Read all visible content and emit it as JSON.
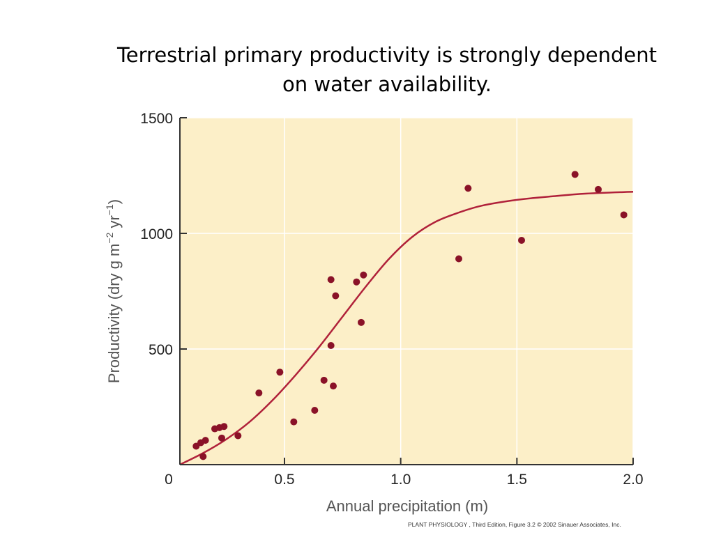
{
  "slide": {
    "title_line1": "Terrestrial primary productivity is strongly dependent",
    "title_line2": "on water availability."
  },
  "credit": "PLANT PHYSIOLOGY , Third Edition, Figure 3.2  © 2002 Sinauer Associates, Inc.",
  "colors": {
    "plot_background": "#fcefc8",
    "points": "#8a1228",
    "curve": "#b0213a",
    "axis": "#333333"
  },
  "chart_data": {
    "type": "scatter",
    "xlabel": "Annual precipitation (m)",
    "ylabel_parts": {
      "lead": "Productivity (dry g m",
      "exp1": "−2",
      "mid": " yr",
      "exp2": "−1",
      "tail": ")"
    },
    "xlim": [
      0.05,
      2.0
    ],
    "ylim": [
      0,
      1500
    ],
    "x_ticks": [
      {
        "value": 0,
        "label": "0"
      },
      {
        "value": 0.5,
        "label": "0.5"
      },
      {
        "value": 1.0,
        "label": "1.0"
      },
      {
        "value": 1.5,
        "label": "1.5"
      },
      {
        "value": 2.0,
        "label": "2.0"
      }
    ],
    "y_ticks": [
      {
        "value": 500,
        "label": "500"
      },
      {
        "value": 1000,
        "label": "1000"
      },
      {
        "value": 1500,
        "label": "1500"
      }
    ],
    "grid": true,
    "points": [
      {
        "x": 0.12,
        "y": 80
      },
      {
        "x": 0.14,
        "y": 95
      },
      {
        "x": 0.15,
        "y": 35
      },
      {
        "x": 0.16,
        "y": 105
      },
      {
        "x": 0.2,
        "y": 155
      },
      {
        "x": 0.22,
        "y": 160
      },
      {
        "x": 0.23,
        "y": 115
      },
      {
        "x": 0.24,
        "y": 165
      },
      {
        "x": 0.3,
        "y": 125
      },
      {
        "x": 0.39,
        "y": 310
      },
      {
        "x": 0.48,
        "y": 400
      },
      {
        "x": 0.54,
        "y": 185
      },
      {
        "x": 0.63,
        "y": 235
      },
      {
        "x": 0.67,
        "y": 365
      },
      {
        "x": 0.7,
        "y": 515
      },
      {
        "x": 0.7,
        "y": 800
      },
      {
        "x": 0.71,
        "y": 340
      },
      {
        "x": 0.72,
        "y": 730
      },
      {
        "x": 0.81,
        "y": 790
      },
      {
        "x": 0.83,
        "y": 615
      },
      {
        "x": 0.84,
        "y": 820
      },
      {
        "x": 1.25,
        "y": 890
      },
      {
        "x": 1.29,
        "y": 1195
      },
      {
        "x": 1.52,
        "y": 970
      },
      {
        "x": 1.75,
        "y": 1255
      },
      {
        "x": 1.85,
        "y": 1190
      },
      {
        "x": 1.96,
        "y": 1080
      }
    ],
    "curve": [
      {
        "x": 0.05,
        "y": 0
      },
      {
        "x": 0.15,
        "y": 50
      },
      {
        "x": 0.25,
        "y": 110
      },
      {
        "x": 0.35,
        "y": 185
      },
      {
        "x": 0.45,
        "y": 280
      },
      {
        "x": 0.55,
        "y": 390
      },
      {
        "x": 0.65,
        "y": 510
      },
      {
        "x": 0.75,
        "y": 640
      },
      {
        "x": 0.85,
        "y": 770
      },
      {
        "x": 0.95,
        "y": 890
      },
      {
        "x": 1.05,
        "y": 985
      },
      {
        "x": 1.15,
        "y": 1050
      },
      {
        "x": 1.25,
        "y": 1090
      },
      {
        "x": 1.35,
        "y": 1120
      },
      {
        "x": 1.5,
        "y": 1145
      },
      {
        "x": 1.65,
        "y": 1160
      },
      {
        "x": 1.8,
        "y": 1172
      },
      {
        "x": 2.0,
        "y": 1180
      }
    ]
  }
}
